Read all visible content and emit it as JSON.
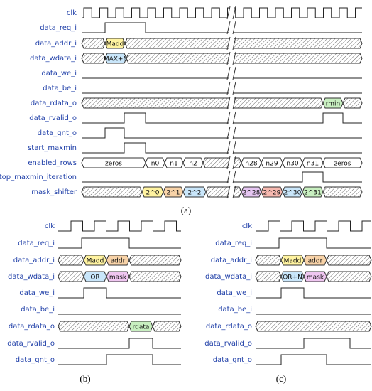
{
  "panels": [
    {
      "caption": "(a)",
      "signals": [
        {
          "name": "clk"
        },
        {
          "name": "data_req_i"
        },
        {
          "name": "data_addr_i",
          "values": [
            "Madd"
          ]
        },
        {
          "name": "data_wdata_i",
          "values": [
            "MAX+N"
          ]
        },
        {
          "name": "data_we_i"
        },
        {
          "name": "data_be_i"
        },
        {
          "name": "data_rdata_o",
          "values": [
            "rmin"
          ]
        },
        {
          "name": "data_rvalid_o"
        },
        {
          "name": "data_gnt_o"
        },
        {
          "name": "start_maxmin"
        },
        {
          "name": "enabled_rows",
          "values": [
            "zeros",
            "n0",
            "n1",
            "n2",
            "n28",
            "n29",
            "n30",
            "n31",
            "zeros"
          ]
        },
        {
          "name": "stop_maxmin_iteration"
        },
        {
          "name": "mask_shifter",
          "values": [
            "2^0",
            "2^1",
            "2^2",
            "2^28",
            "2^29",
            "2^30",
            "2^31"
          ]
        }
      ]
    },
    {
      "caption": "(b)",
      "signals": [
        {
          "name": "clk"
        },
        {
          "name": "data_req_i"
        },
        {
          "name": "data_addr_i",
          "values": [
            "Madd",
            "addr"
          ]
        },
        {
          "name": "data_wdata_i",
          "values": [
            "OR",
            "mask"
          ]
        },
        {
          "name": "data_we_i"
        },
        {
          "name": "data_be_i"
        },
        {
          "name": "data_rdata_o",
          "values": [
            "rdata"
          ]
        },
        {
          "name": "data_rvalid_o"
        },
        {
          "name": "data_gnt_o"
        }
      ]
    },
    {
      "caption": "(c)",
      "signals": [
        {
          "name": "clk"
        },
        {
          "name": "data_req_i"
        },
        {
          "name": "data_addr_i",
          "values": [
            "Madd",
            "addr"
          ]
        },
        {
          "name": "data_wdata_i",
          "values": [
            "OR+N",
            "mask"
          ]
        },
        {
          "name": "data_we_i"
        },
        {
          "name": "data_be_i"
        },
        {
          "name": "data_rdata_o"
        },
        {
          "name": "data_rvalid_o"
        },
        {
          "name": "data_gnt_o"
        }
      ]
    }
  ]
}
